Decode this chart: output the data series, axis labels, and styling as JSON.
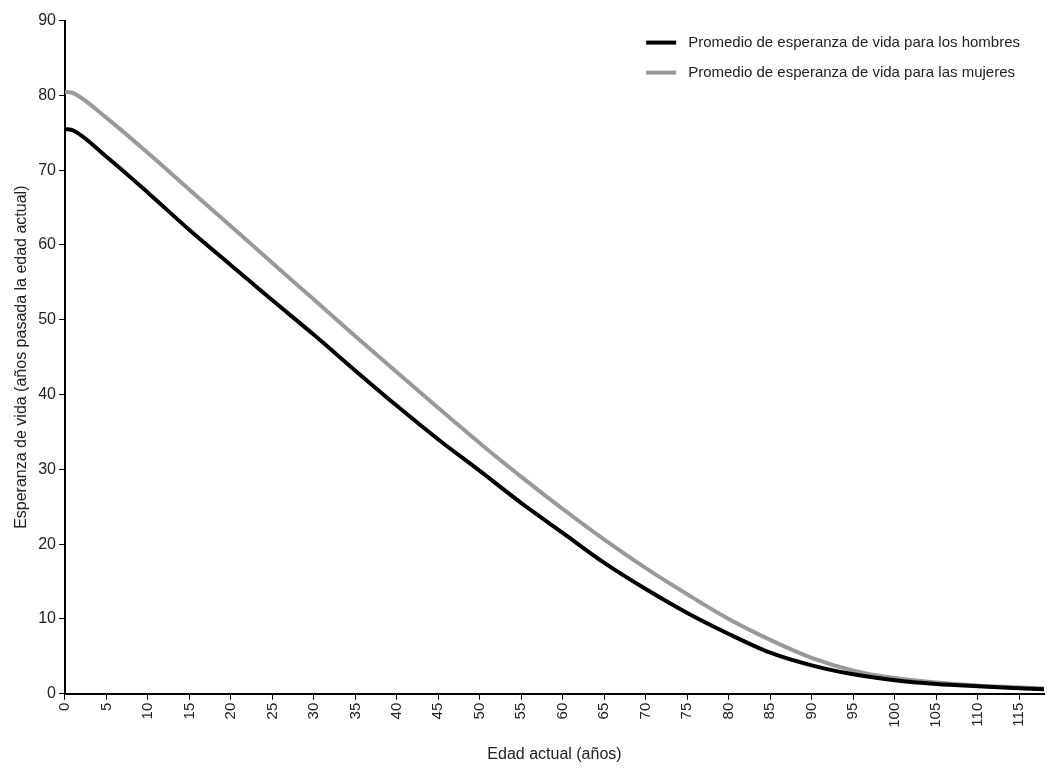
{
  "chart_data": {
    "type": "line",
    "xlabel": "Edad actual (años)",
    "ylabel": "Esperanza de vida (años pasada la edad actual)",
    "xlim": [
      0,
      118
    ],
    "xticks": [
      0,
      5,
      10,
      15,
      20,
      25,
      30,
      35,
      40,
      45,
      50,
      55,
      60,
      65,
      70,
      75,
      80,
      85,
      90,
      95,
      100,
      105,
      110,
      115
    ],
    "ylim": [
      0,
      90
    ],
    "yticks": [
      0,
      10,
      20,
      30,
      40,
      50,
      60,
      70,
      80,
      90
    ],
    "x": [
      0,
      1,
      5,
      10,
      15,
      20,
      25,
      30,
      35,
      40,
      45,
      50,
      55,
      60,
      65,
      70,
      75,
      80,
      85,
      90,
      95,
      100,
      105,
      110,
      118
    ],
    "series": [
      {
        "name": "Promedio de esperanza de vida para los hombres",
        "color": "#000000",
        "values": [
          75.5,
          75.3,
          71.8,
          67,
          62,
          57.3,
          52.6,
          48,
          43.2,
          38.5,
          34,
          29.8,
          25.5,
          21.5,
          17.5,
          14,
          10.8,
          8,
          5.5,
          3.8,
          2.6,
          1.8,
          1.3,
          1,
          0.6
        ]
      },
      {
        "name": "Promedio de esperanza de vida para las mujeres",
        "color": "#999999",
        "values": [
          80.5,
          80.3,
          77,
          72.3,
          67.4,
          62.5,
          57.6,
          52.7,
          47.8,
          43,
          38.2,
          33.5,
          29,
          24.7,
          20.6,
          16.8,
          13.3,
          10,
          7.2,
          4.8,
          3.1,
          2.1,
          1.5,
          1.1,
          0.7
        ]
      }
    ],
    "grid": false,
    "legend": "top right",
    "marker": "none",
    "line_style": "solid"
  }
}
